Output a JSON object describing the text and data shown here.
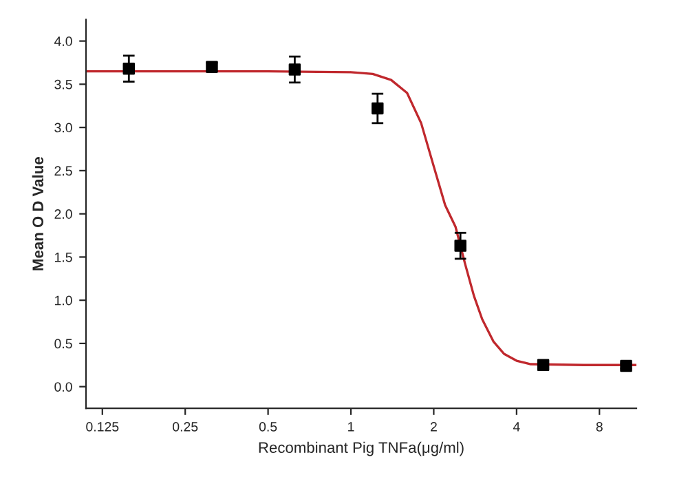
{
  "chart_data": {
    "type": "scatter",
    "xlabel": "Recombinant Pig TNFa(μg/ml)",
    "ylabel": "Mean O D Value",
    "log": "x",
    "xlim": [
      0.109,
      10.9
    ],
    "xticks": [
      0.125,
      0.25,
      0.5,
      1,
      2,
      4,
      8
    ],
    "ylim": [
      -0.25,
      4.25
    ],
    "yticks": [
      {
        "value": 0,
        "label": "0.0"
      },
      {
        "value": 0.5,
        "label": "0.5"
      },
      {
        "value": 1,
        "label": "1.0"
      },
      {
        "value": 1.5,
        "label": "1.5"
      },
      {
        "value": 2,
        "label": "2.0"
      },
      {
        "value": 2.5,
        "label": "2.5"
      },
      {
        "value": 3,
        "label": "3.0"
      },
      {
        "value": 3.5,
        "label": "3.5"
      },
      {
        "value": 4,
        "label": "4.0"
      }
    ],
    "grid": false,
    "series": [
      {
        "type": "line",
        "color": "#c0282d",
        "line_style": "solid",
        "marker": "none",
        "x": [
          0.109,
          0.5,
          1.0,
          1.2,
          1.4,
          1.6,
          1.8,
          2.0,
          2.2,
          2.4,
          2.6,
          2.8,
          3.0,
          3.3,
          3.6,
          4.0,
          4.5,
          7.0,
          10.9
        ],
        "values": [
          3.65,
          3.65,
          3.64,
          3.62,
          3.55,
          3.4,
          3.05,
          2.55,
          2.1,
          1.85,
          1.42,
          1.05,
          0.78,
          0.52,
          0.38,
          0.3,
          0.26,
          0.25,
          0.25
        ]
      },
      {
        "color": "#000000",
        "marker": "square",
        "x": [
          0.156,
          0.3125,
          0.625,
          1.25,
          2.5,
          5,
          10
        ],
        "values": [
          3.68,
          3.7,
          3.67,
          3.22,
          1.63,
          0.25,
          0.24
        ],
        "errors": [
          0.15,
          0.05,
          0.15,
          0.17,
          0.15,
          0.03,
          0.03
        ]
      }
    ]
  }
}
